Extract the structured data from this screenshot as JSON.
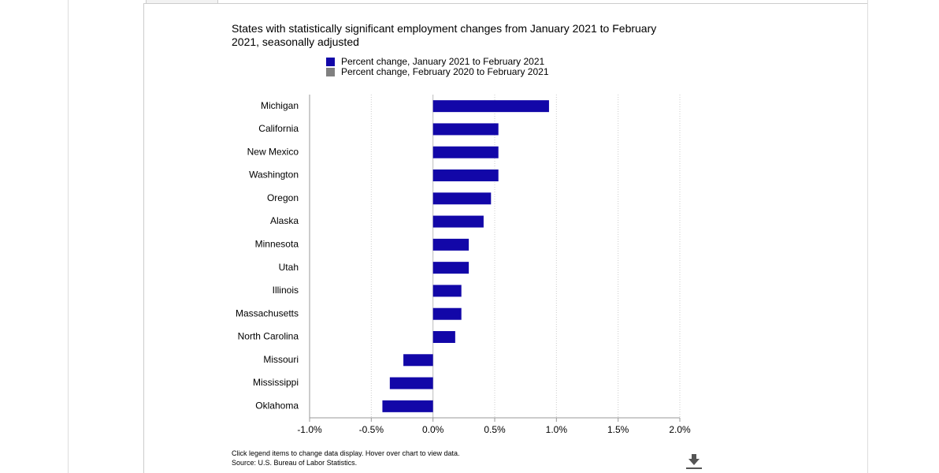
{
  "chart_data": {
    "type": "bar",
    "orientation": "horizontal",
    "title": "States with statistically significant employment changes from January 2021 to February 2021, seasonally adjusted",
    "categories": [
      "Michigan",
      "California",
      "New Mexico",
      "Washington",
      "Oregon",
      "Alaska",
      "Minnesota",
      "Utah",
      "Illinois",
      "Massachusetts",
      "North Carolina",
      "Missouri",
      "Mississippi",
      "Oklahoma"
    ],
    "series": [
      {
        "name": "Percent change, January 2021 to February 2021",
        "color": "#1207a8",
        "values": [
          0.94,
          0.53,
          0.53,
          0.53,
          0.47,
          0.41,
          0.29,
          0.29,
          0.23,
          0.23,
          0.18,
          -0.24,
          -0.35,
          -0.41
        ]
      },
      {
        "name": "Percent change, February 2020 to February 2021",
        "color": "#808080",
        "values": [
          null,
          null,
          null,
          null,
          null,
          null,
          null,
          null,
          null,
          null,
          null,
          null,
          null,
          null
        ]
      }
    ],
    "xlim": [
      -1,
      2
    ],
    "xticks": [
      {
        "value": -1,
        "label": "-1.0%"
      },
      {
        "value": -0.5,
        "label": "-0.5%"
      },
      {
        "value": 0,
        "label": "0.0%"
      },
      {
        "value": 0.5,
        "label": "0.5%"
      },
      {
        "value": 1,
        "label": "1.0%"
      },
      {
        "value": 1.5,
        "label": "1.5%"
      },
      {
        "value": 2,
        "label": "2.0%"
      }
    ],
    "grid": true,
    "notes": [
      "Click legend items to change data display. Hover over chart to view data.",
      "Source: U.S. Bureau of Labor Statistics."
    ]
  }
}
